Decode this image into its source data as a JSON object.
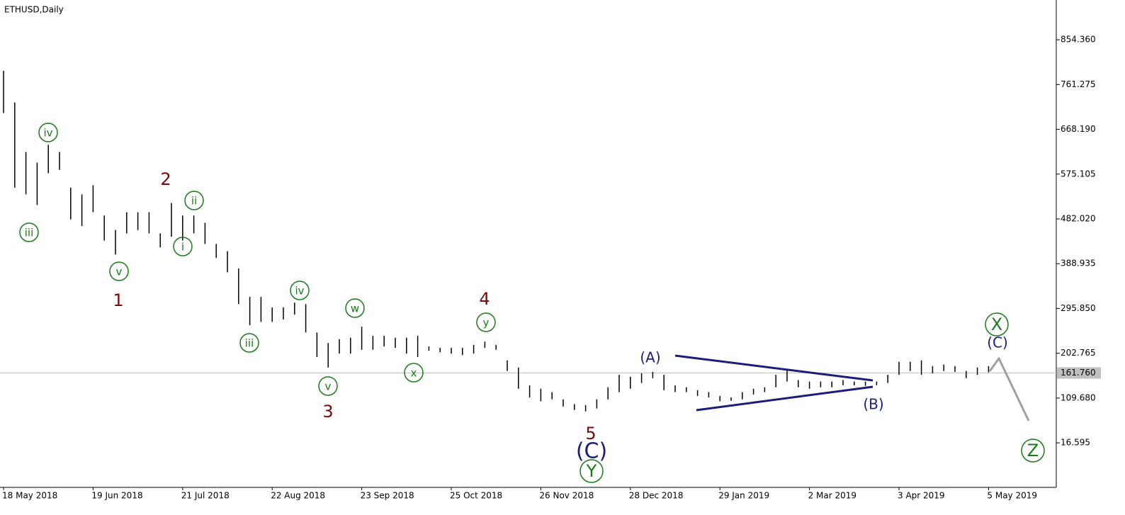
{
  "chart_data": {
    "type": "ohlc",
    "title": "ETHUSD,Daily",
    "categories": [
      "18 May 2018",
      null,
      null,
      null,
      null,
      null,
      null,
      null,
      "19 Jun 2018",
      null,
      null,
      null,
      null,
      null,
      null,
      null,
      "21 Jul 2018",
      null,
      null,
      null,
      null,
      null,
      null,
      null,
      "22 Aug 2018",
      null,
      null,
      null,
      null,
      null,
      null,
      null,
      "23 Sep 2018",
      null,
      null,
      null,
      null,
      null,
      null,
      null,
      "25 Oct 2018",
      null,
      null,
      null,
      null,
      null,
      null,
      null,
      "26 Nov 2018",
      null,
      null,
      null,
      null,
      null,
      null,
      null,
      "28 Dec 2018",
      null,
      null,
      null,
      null,
      null,
      null,
      null,
      "29 Jan 2019",
      null,
      null,
      null,
      null,
      null,
      null,
      null,
      "2 Mar 2019",
      null,
      null,
      null,
      null,
      null,
      null,
      null,
      "3 Apr 2019",
      null,
      null,
      null,
      null,
      null,
      null,
      null,
      "5 May 2019"
    ],
    "high": [
      790,
      724,
      621,
      599,
      636,
      621,
      547,
      533,
      552,
      489,
      459,
      496,
      496,
      496,
      452,
      515,
      489,
      489,
      474,
      430,
      415,
      379,
      320,
      320,
      298,
      298,
      308,
      305,
      246,
      224,
      232,
      235,
      258,
      239,
      239,
      235,
      235,
      239,
      217,
      214,
      214,
      214,
      220,
      227,
      220,
      188,
      173,
      136,
      129,
      122,
      107,
      97,
      95,
      107,
      132,
      158,
      154,
      161,
      164,
      158,
      136,
      132,
      126,
      122,
      114,
      111,
      122,
      129,
      132,
      158,
      170,
      147,
      144,
      144,
      144,
      147,
      144,
      144,
      144,
      158,
      185,
      185,
      188,
      176,
      179,
      176,
      166,
      173,
      176
    ],
    "low": [
      702,
      547,
      533,
      511,
      577,
      584,
      481,
      467,
      496,
      437,
      408,
      452,
      459,
      452,
      423,
      445,
      437,
      452,
      430,
      401,
      371,
      305,
      261,
      268,
      268,
      273,
      283,
      246,
      195,
      173,
      202,
      202,
      210,
      210,
      217,
      214,
      202,
      195,
      208,
      205,
      202,
      199,
      202,
      214,
      210,
      166,
      129,
      111,
      103,
      107,
      92,
      85,
      82,
      88,
      107,
      122,
      129,
      141,
      151,
      126,
      122,
      122,
      114,
      111,
      103,
      104,
      107,
      117,
      122,
      132,
      144,
      132,
      129,
      132,
      132,
      136,
      136,
      135,
      136,
      141,
      158,
      166,
      158,
      161,
      166,
      164,
      151,
      158,
      163
    ],
    "color": "#000000",
    "ylim": [
      -76,
      937
    ],
    "yticks": [
      {
        "value": 16.595,
        "label": "16.595"
      },
      {
        "value": 109.68,
        "label": "109.680"
      },
      {
        "value": 202.765,
        "label": "202.765"
      },
      {
        "value": 295.85,
        "label": "295.850"
      },
      {
        "value": 388.935,
        "label": "388.935"
      },
      {
        "value": 482.02,
        "label": "482.020"
      },
      {
        "value": 575.105,
        "label": "575.105"
      },
      {
        "value": 668.19,
        "label": "668.190"
      },
      {
        "value": 761.275,
        "label": "761.275"
      },
      {
        "value": 854.36,
        "label": "854.360"
      }
    ],
    "current_price": {
      "value": 161.76,
      "label": "161.760"
    },
    "annotations": [
      {
        "text": "iv",
        "color": "#1a7a1a",
        "circled": true
      },
      {
        "text": "iii",
        "color": "#1a7a1a",
        "circled": true
      },
      {
        "text": "v",
        "color": "#1a7a1a",
        "circled": true
      },
      {
        "text": "ii",
        "color": "#1a7a1a",
        "circled": true
      },
      {
        "text": "i",
        "color": "#1a7a1a",
        "circled": true
      },
      {
        "text": "iv",
        "color": "#1a7a1a",
        "circled": true
      },
      {
        "text": "iii",
        "color": "#1a7a1a",
        "circled": true
      },
      {
        "text": "v",
        "color": "#1a7a1a",
        "circled": true
      },
      {
        "text": "w",
        "color": "#1a7a1a",
        "circled": true
      },
      {
        "text": "x",
        "color": "#1a7a1a",
        "circled": true
      },
      {
        "text": "y",
        "color": "#1a7a1a",
        "circled": true
      },
      {
        "text": "Y",
        "color": "#1a7a1a",
        "circled": true
      },
      {
        "text": "X",
        "color": "#1a7a1a",
        "circled": true
      },
      {
        "text": "Z",
        "color": "#1a7a1a",
        "circled": true
      },
      {
        "text": "1",
        "color": "#7a0a0a",
        "circled": false
      },
      {
        "text": "2",
        "color": "#7a0a0a",
        "circled": false
      },
      {
        "text": "3",
        "color": "#7a0a0a",
        "circled": false
      },
      {
        "text": "4",
        "color": "#7a0a0a",
        "circled": false
      },
      {
        "text": "5",
        "color": "#7a0a0a",
        "circled": false
      },
      {
        "text": "(A)",
        "color": "#1c1c7a",
        "circled": false
      },
      {
        "text": "(B)",
        "color": "#1c1c7a",
        "circled": false
      },
      {
        "text": "(C)",
        "color": "#1c1c7a",
        "circled": false
      },
      {
        "text": "(C)",
        "color": "#1c1c7a",
        "circled": false
      }
    ]
  }
}
